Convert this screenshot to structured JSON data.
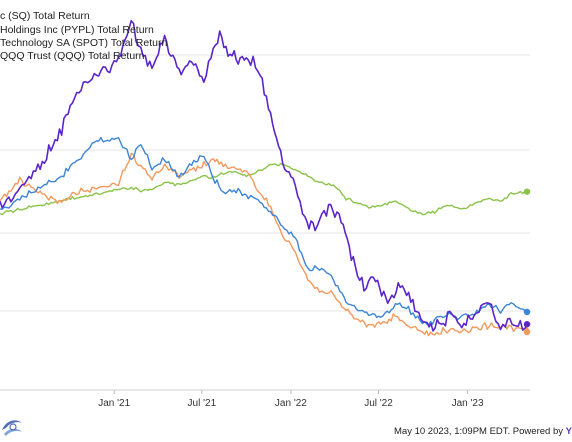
{
  "legend": [
    {
      "label": "c (SQ) Total Return",
      "color": "#5b26c9"
    },
    {
      "label": "Holdings Inc (PYPL) Total Return",
      "color": "#3d85d6"
    },
    {
      "label": "Technology SA (SPOT) Total Return",
      "color": "#f4995c"
    },
    {
      "label": "QQQ Trust (QQQ) Total Return",
      "color": "#8bc34a"
    }
  ],
  "footer": {
    "text": "May 10 2023, 1:09PM EDT. Powered by ",
    "brand": "Y"
  },
  "chart_data": {
    "type": "line",
    "title": "",
    "xlabel": "",
    "ylabel": "",
    "x_tick_labels": [
      "Jan '21",
      "Jul '21",
      "Jan '22",
      "Jul '22",
      "Jan '23"
    ],
    "grid": true,
    "legend_position": "top-left",
    "series": [
      {
        "name": "c (SQ) Total Return",
        "color": "#5b26c9",
        "points": [
          [
            "2020-05-10",
            225
          ],
          [
            "2020-06-20",
            240
          ],
          [
            "2020-08-01",
            262
          ],
          [
            "2020-09-10",
            290
          ],
          [
            "2020-10-20",
            330
          ],
          [
            "2020-11-30",
            345
          ],
          [
            "2021-01-10",
            355
          ],
          [
            "2021-02-05",
            392
          ],
          [
            "2021-02-25",
            365
          ],
          [
            "2021-03-20",
            350
          ],
          [
            "2021-04-15",
            375
          ],
          [
            "2021-05-15",
            345
          ],
          [
            "2021-06-10",
            356
          ],
          [
            "2021-07-05",
            338
          ],
          [
            "2021-07-20",
            362
          ],
          [
            "2021-08-07",
            378
          ],
          [
            "2021-08-20",
            365
          ],
          [
            "2021-09-10",
            358
          ],
          [
            "2021-10-05",
            360
          ],
          [
            "2021-10-25",
            348
          ],
          [
            "2021-11-20",
            310
          ],
          [
            "2021-12-15",
            262
          ],
          [
            "2022-01-10",
            242
          ],
          [
            "2022-01-30",
            210
          ],
          [
            "2022-02-20",
            205
          ],
          [
            "2022-03-20",
            225
          ],
          [
            "2022-04-15",
            212
          ],
          [
            "2022-05-10",
            175
          ],
          [
            "2022-06-01",
            152
          ],
          [
            "2022-06-25",
            160
          ],
          [
            "2022-07-20",
            138
          ],
          [
            "2022-08-15",
            155
          ],
          [
            "2022-09-10",
            140
          ],
          [
            "2022-10-05",
            120
          ],
          [
            "2022-10-30",
            118
          ],
          [
            "2022-11-25",
            126
          ],
          [
            "2022-12-20",
            115
          ],
          [
            "2023-01-20",
            132
          ],
          [
            "2023-02-15",
            140
          ],
          [
            "2023-03-05",
            115
          ],
          [
            "2023-03-25",
            122
          ],
          [
            "2023-04-20",
            118
          ],
          [
            "2023-05-10",
            119
          ]
        ]
      },
      {
        "name": "Holdings Inc (PYPL) Total Return",
        "color": "#3d85d6",
        "points": [
          [
            "2020-05-10",
            220
          ],
          [
            "2020-06-20",
            232
          ],
          [
            "2020-08-01",
            242
          ],
          [
            "2020-09-10",
            250
          ],
          [
            "2020-10-20",
            268
          ],
          [
            "2020-11-30",
            285
          ],
          [
            "2021-01-10",
            285
          ],
          [
            "2021-02-05",
            268
          ],
          [
            "2021-02-25",
            282
          ],
          [
            "2021-03-20",
            260
          ],
          [
            "2021-04-15",
            268
          ],
          [
            "2021-05-15",
            250
          ],
          [
            "2021-06-10",
            265
          ],
          [
            "2021-07-05",
            270
          ],
          [
            "2021-07-20",
            256
          ],
          [
            "2021-08-10",
            238
          ],
          [
            "2021-09-10",
            240
          ],
          [
            "2021-10-05",
            232
          ],
          [
            "2021-10-25",
            232
          ],
          [
            "2021-11-20",
            220
          ],
          [
            "2021-12-15",
            205
          ],
          [
            "2022-01-10",
            196
          ],
          [
            "2022-02-05",
            168
          ],
          [
            "2022-03-01",
            170
          ],
          [
            "2022-03-30",
            160
          ],
          [
            "2022-04-25",
            140
          ],
          [
            "2022-05-20",
            132
          ],
          [
            "2022-06-15",
            128
          ],
          [
            "2022-07-10",
            126
          ],
          [
            "2022-08-05",
            138
          ],
          [
            "2022-09-01",
            132
          ],
          [
            "2022-09-30",
            120
          ],
          [
            "2022-10-25",
            122
          ],
          [
            "2022-11-20",
            128
          ],
          [
            "2022-12-20",
            125
          ],
          [
            "2023-01-20",
            130
          ],
          [
            "2023-02-15",
            138
          ],
          [
            "2023-03-10",
            132
          ],
          [
            "2023-04-01",
            138
          ],
          [
            "2023-04-25",
            132
          ],
          [
            "2023-05-10",
            130
          ]
        ]
      },
      {
        "name": "Technology SA (SPOT) Total Return",
        "color": "#f4995c",
        "points": [
          [
            "2020-05-10",
            230
          ],
          [
            "2020-06-20",
            248
          ],
          [
            "2020-08-01",
            236
          ],
          [
            "2020-09-10",
            228
          ],
          [
            "2020-10-20",
            238
          ],
          [
            "2020-11-30",
            240
          ],
          [
            "2021-01-10",
            246
          ],
          [
            "2021-02-05",
            272
          ],
          [
            "2021-02-25",
            262
          ],
          [
            "2021-03-20",
            250
          ],
          [
            "2021-04-15",
            262
          ],
          [
            "2021-05-15",
            252
          ],
          [
            "2021-06-10",
            258
          ],
          [
            "2021-07-05",
            262
          ],
          [
            "2021-07-20",
            268
          ],
          [
            "2021-08-10",
            262
          ],
          [
            "2021-09-10",
            258
          ],
          [
            "2021-10-05",
            255
          ],
          [
            "2021-10-25",
            238
          ],
          [
            "2021-11-20",
            225
          ],
          [
            "2021-12-15",
            200
          ],
          [
            "2022-01-10",
            185
          ],
          [
            "2022-02-05",
            160
          ],
          [
            "2022-03-01",
            150
          ],
          [
            "2022-03-30",
            145
          ],
          [
            "2022-04-25",
            132
          ],
          [
            "2022-05-20",
            122
          ],
          [
            "2022-06-15",
            118
          ],
          [
            "2022-07-10",
            120
          ],
          [
            "2022-08-05",
            126
          ],
          [
            "2022-09-01",
            118
          ],
          [
            "2022-09-30",
            112
          ],
          [
            "2022-10-25",
            110
          ],
          [
            "2022-11-20",
            114
          ],
          [
            "2022-12-20",
            112
          ],
          [
            "2023-01-20",
            116
          ],
          [
            "2023-02-15",
            118
          ],
          [
            "2023-03-10",
            117
          ],
          [
            "2023-04-01",
            116
          ],
          [
            "2023-04-25",
            114
          ],
          [
            "2023-05-10",
            112
          ]
        ]
      },
      {
        "name": "QQQ Trust (QQQ) Total Return",
        "color": "#8bc34a",
        "points": [
          [
            "2020-05-10",
            218
          ],
          [
            "2020-06-20",
            222
          ],
          [
            "2020-08-01",
            226
          ],
          [
            "2020-09-10",
            230
          ],
          [
            "2020-10-20",
            233
          ],
          [
            "2020-11-30",
            236
          ],
          [
            "2021-01-10",
            240
          ],
          [
            "2021-02-05",
            242
          ],
          [
            "2021-02-25",
            239
          ],
          [
            "2021-03-20",
            240
          ],
          [
            "2021-04-15",
            246
          ],
          [
            "2021-05-15",
            244
          ],
          [
            "2021-06-10",
            248
          ],
          [
            "2021-07-05",
            252
          ],
          [
            "2021-07-20",
            250
          ],
          [
            "2021-08-10",
            254
          ],
          [
            "2021-09-10",
            256
          ],
          [
            "2021-10-05",
            252
          ],
          [
            "2021-10-25",
            256
          ],
          [
            "2021-11-20",
            262
          ],
          [
            "2021-12-15",
            262
          ],
          [
            "2022-01-10",
            258
          ],
          [
            "2022-02-05",
            252
          ],
          [
            "2022-03-01",
            246
          ],
          [
            "2022-03-30",
            244
          ],
          [
            "2022-04-25",
            232
          ],
          [
            "2022-05-20",
            228
          ],
          [
            "2022-06-15",
            224
          ],
          [
            "2022-07-10",
            226
          ],
          [
            "2022-08-05",
            230
          ],
          [
            "2022-09-01",
            222
          ],
          [
            "2022-09-30",
            218
          ],
          [
            "2022-10-25",
            220
          ],
          [
            "2022-11-20",
            226
          ],
          [
            "2022-12-20",
            222
          ],
          [
            "2023-01-20",
            228
          ],
          [
            "2023-02-15",
            232
          ],
          [
            "2023-03-10",
            230
          ],
          [
            "2023-04-01",
            236
          ],
          [
            "2023-04-25",
            237
          ],
          [
            "2023-05-10",
            238
          ]
        ]
      }
    ]
  }
}
